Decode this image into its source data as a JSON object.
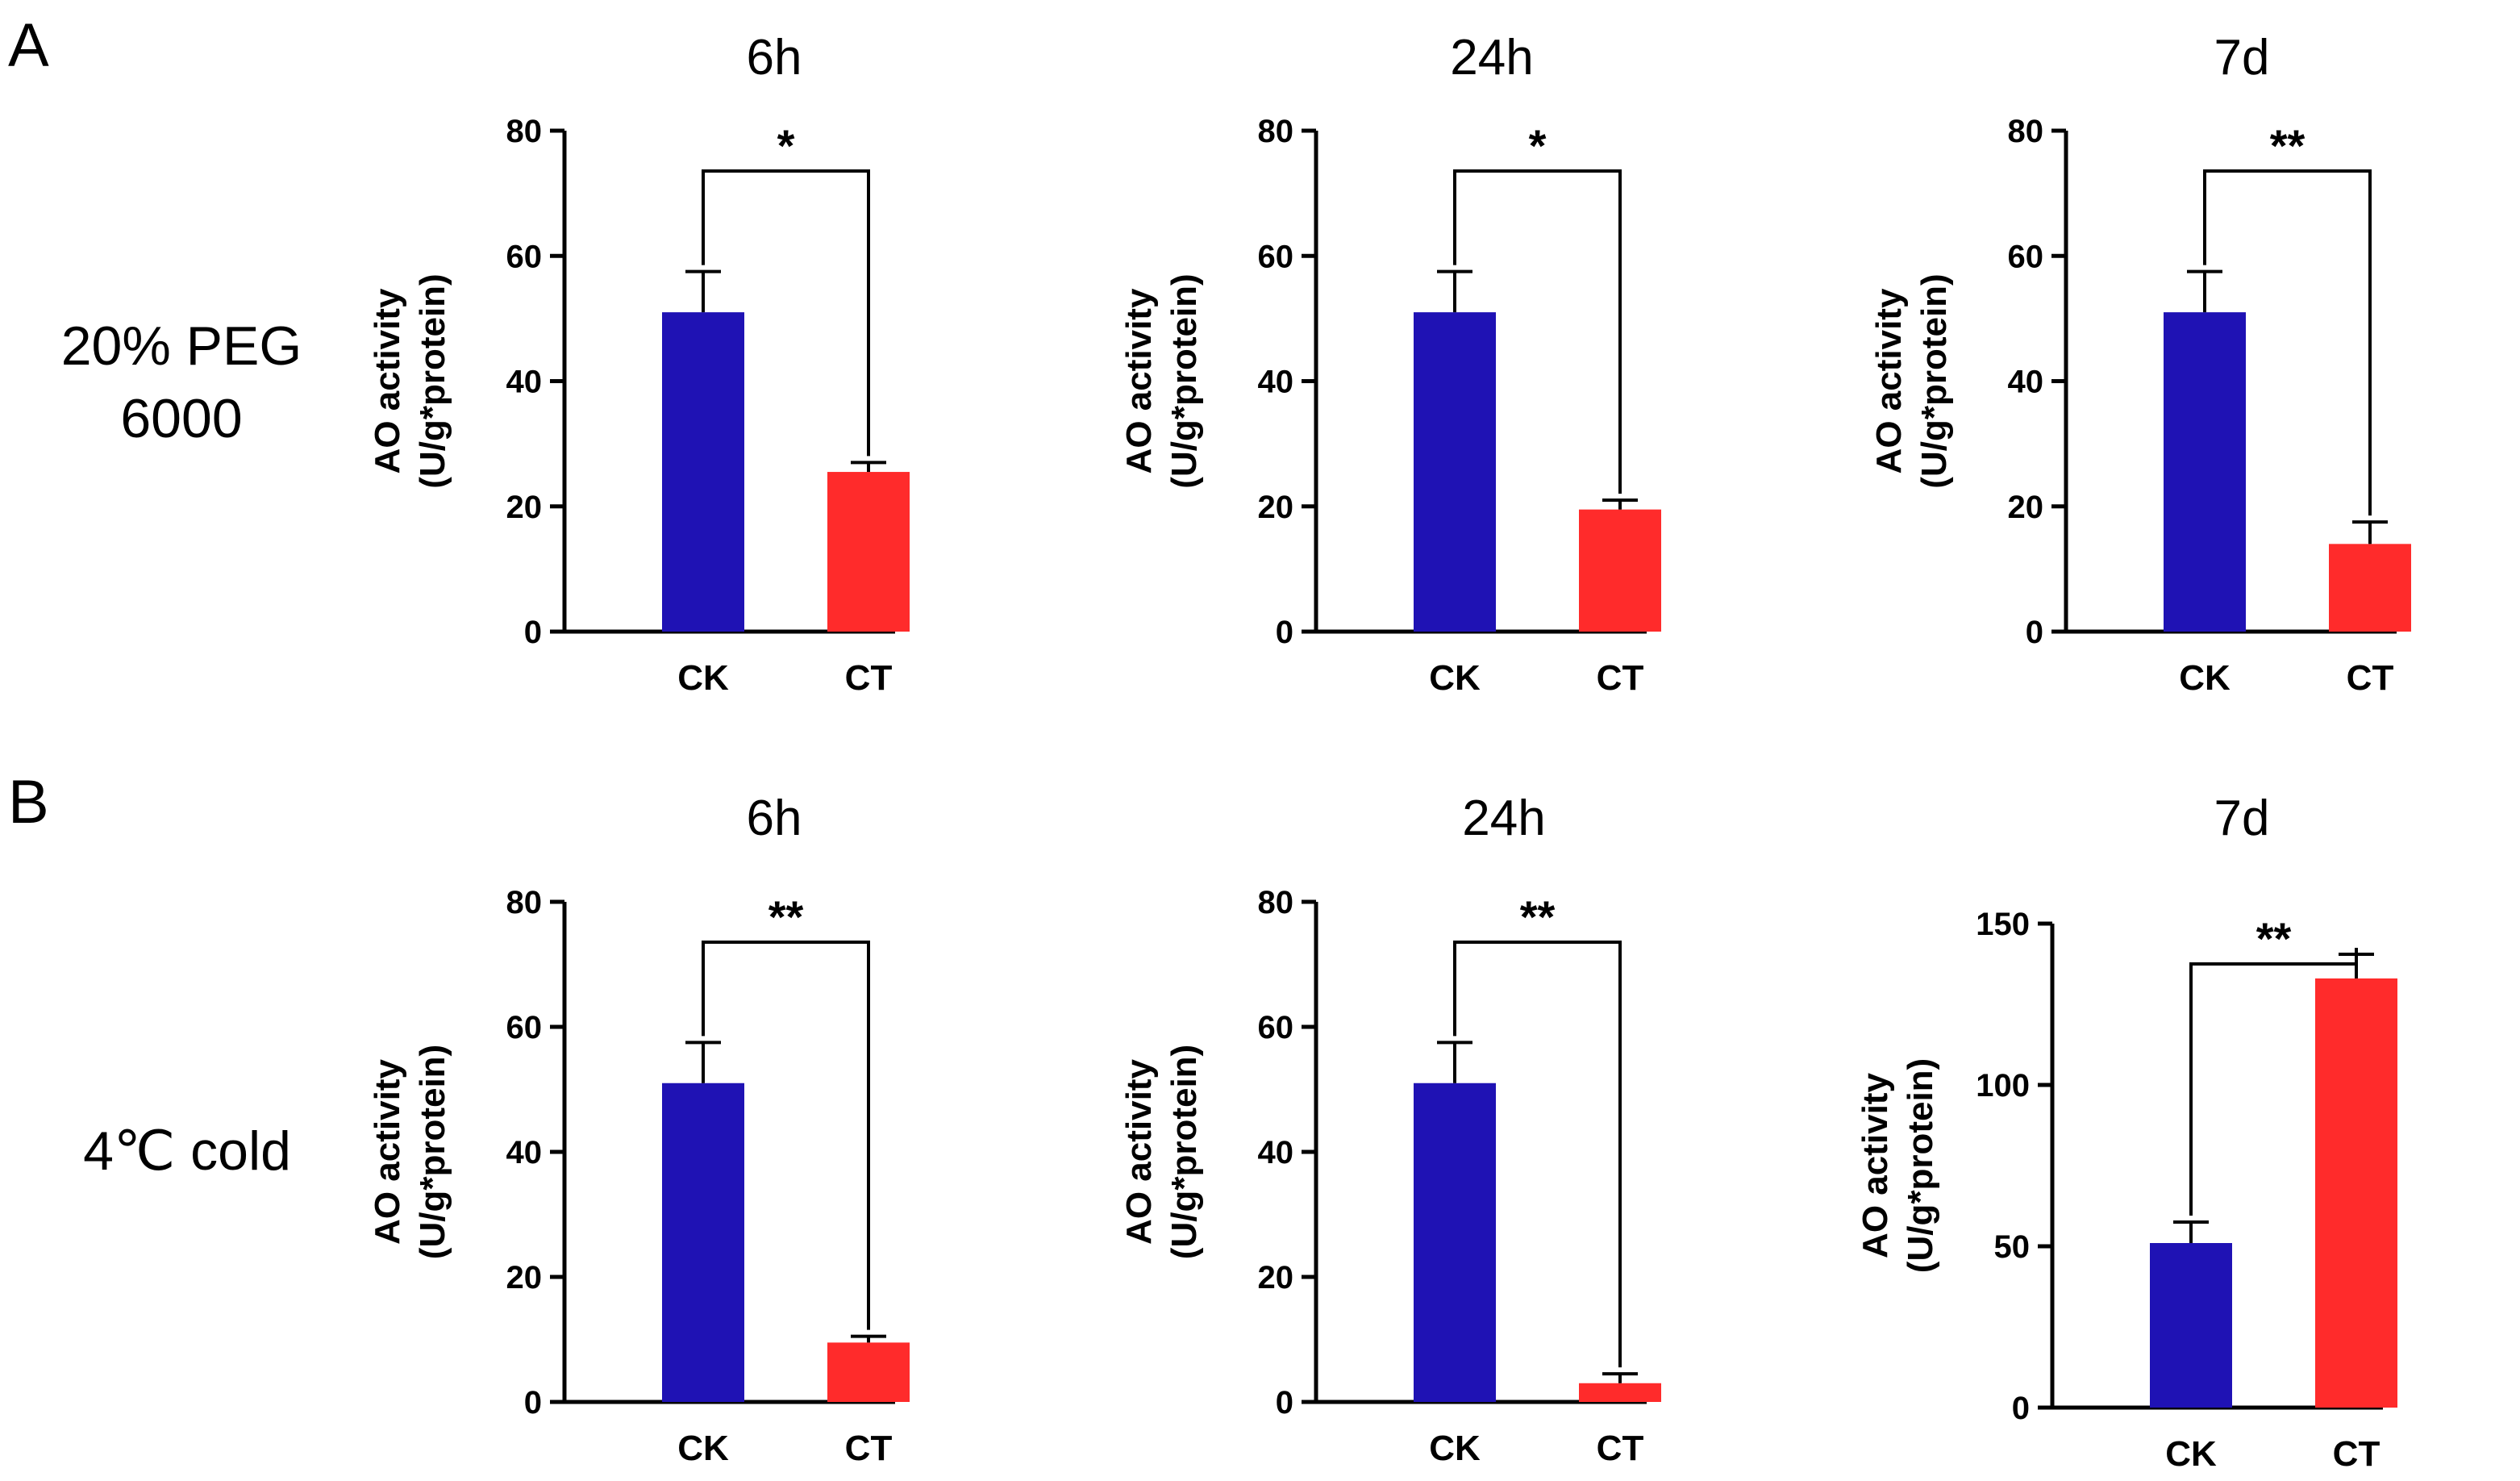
{
  "figure": {
    "panel_labels": [
      "A",
      "B"
    ],
    "row_labels": [
      [
        "20% PEG",
        "6000"
      ],
      [
        "4℃ cold"
      ]
    ]
  },
  "colors": {
    "CK": "#1f12b4",
    "CT": "#ff2b2b",
    "axis": "#000000"
  },
  "chart_data": [
    {
      "type": "bar",
      "panel": "A",
      "title": "6h",
      "categories": [
        "CK",
        "CT"
      ],
      "values": [
        51,
        25.5
      ],
      "errors": [
        6.5,
        1.5
      ],
      "ylabel_lines": [
        "AO activity",
        "(U/g*protein)"
      ],
      "ylim": [
        0,
        80
      ],
      "yticks": [
        0,
        20,
        40,
        60,
        80
      ],
      "significance": "*"
    },
    {
      "type": "bar",
      "panel": "A",
      "title": "24h",
      "categories": [
        "CK",
        "CT"
      ],
      "values": [
        51,
        19.5
      ],
      "errors": [
        6.5,
        1.5
      ],
      "ylabel_lines": [
        "AO activity",
        "(U/g*protein)"
      ],
      "ylim": [
        0,
        80
      ],
      "yticks": [
        0,
        20,
        40,
        60,
        80
      ],
      "significance": "*"
    },
    {
      "type": "bar",
      "panel": "A",
      "title": "7d",
      "categories": [
        "CK",
        "CT"
      ],
      "values": [
        51,
        14
      ],
      "errors": [
        6.5,
        3.5
      ],
      "ylabel_lines": [
        "AO activity",
        "(U/g*protein)"
      ],
      "ylim": [
        0,
        80
      ],
      "yticks": [
        0,
        20,
        40,
        60,
        80
      ],
      "significance": "**"
    },
    {
      "type": "bar",
      "panel": "B",
      "title": "6h",
      "categories": [
        "CK",
        "CT"
      ],
      "values": [
        51,
        9.5
      ],
      "errors": [
        6.5,
        1
      ],
      "ylabel_lines": [
        "AO activity",
        "(U/g*protein)"
      ],
      "ylim": [
        0,
        80
      ],
      "yticks": [
        0,
        20,
        40,
        60,
        80
      ],
      "significance": "**"
    },
    {
      "type": "bar",
      "panel": "B",
      "title": "24h",
      "categories": [
        "CK",
        "CT"
      ],
      "values": [
        51,
        3
      ],
      "errors": [
        6.5,
        1.5
      ],
      "ylabel_lines": [
        "AO activity",
        "(U/g*protein)"
      ],
      "ylim": [
        0,
        80
      ],
      "yticks": [
        0,
        20,
        40,
        60,
        80
      ],
      "significance": "**"
    },
    {
      "type": "bar",
      "panel": "B",
      "title": "7d",
      "categories": [
        "CK",
        "CT"
      ],
      "values": [
        51,
        133
      ],
      "errors": [
        6.5,
        7.5
      ],
      "ylabel_lines": [
        "AO activity",
        "(U/g*protein)"
      ],
      "ylim": [
        0,
        150
      ],
      "yticks": [
        0,
        50,
        100,
        150
      ],
      "significance": "**"
    }
  ]
}
